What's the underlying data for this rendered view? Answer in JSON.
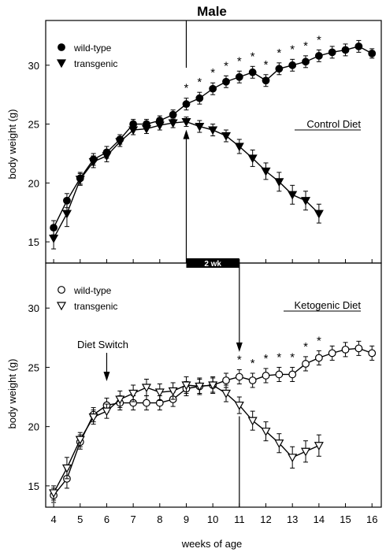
{
  "figure_title": "Male",
  "xlabel": "weeks of age",
  "ylabel": "body weight (g)",
  "x_ticks": [
    "4",
    "5",
    "6",
    "7",
    "8",
    "9",
    "10",
    "11",
    "12",
    "13",
    "14",
    "15",
    "16"
  ],
  "y_ticks": [
    "15",
    "20",
    "25",
    "30"
  ],
  "interval_label": "2 wk",
  "diet_switch_label": "Diet Switch",
  "chart_data": [
    {
      "type": "line",
      "panel": "top",
      "panel_label": "Control Diet",
      "ylabel": "body weight (g)",
      "xlabel": "",
      "xlim": [
        3.7,
        16.35
      ],
      "ylim": [
        13.2,
        33.8
      ],
      "grid": false,
      "legend_position": "top-left",
      "series": [
        {
          "name": "wild-type",
          "marker": "circle-filled",
          "x": [
            4,
            4.5,
            5,
            5.5,
            6,
            6.5,
            7,
            7.5,
            8,
            8.5,
            9,
            9.5,
            10,
            10.5,
            11,
            11.5,
            12,
            12.5,
            13,
            13.5,
            14,
            14.5,
            15,
            15.5,
            16
          ],
          "values": [
            16.2,
            18.5,
            20.4,
            22.0,
            22.6,
            23.7,
            25.0,
            25.0,
            25.3,
            25.8,
            26.7,
            27.2,
            28.0,
            28.6,
            29.0,
            29.4,
            28.7,
            29.7,
            30.0,
            30.3,
            30.8,
            31.1,
            31.3,
            31.6,
            31.0
          ],
          "error": [
            0.6,
            0.6,
            0.5,
            0.5,
            0.5,
            0.4,
            0.4,
            0.4,
            0.4,
            0.4,
            0.5,
            0.5,
            0.5,
            0.5,
            0.5,
            0.5,
            0.5,
            0.5,
            0.5,
            0.5,
            0.5,
            0.5,
            0.5,
            0.5,
            0.4
          ]
        },
        {
          "name": "transgenic",
          "marker": "triangle-down-filled",
          "x": [
            4,
            4.5,
            5,
            5.5,
            6,
            6.5,
            7,
            7.5,
            8,
            8.5,
            9,
            9.5,
            10,
            10.5,
            11,
            11.5,
            12,
            12.5,
            13,
            13.5,
            14
          ],
          "values": [
            15.3,
            17.4,
            20.3,
            21.8,
            22.3,
            23.5,
            24.5,
            24.6,
            24.9,
            25.1,
            25.2,
            24.8,
            24.5,
            24.0,
            23.1,
            22.1,
            21.0,
            20.1,
            19.0,
            18.5,
            17.4
          ],
          "error": [
            0.9,
            1.1,
            0.5,
            0.5,
            0.5,
            0.4,
            0.4,
            0.4,
            0.4,
            0.4,
            0.4,
            0.5,
            0.5,
            0.5,
            0.6,
            0.7,
            0.7,
            0.8,
            0.8,
            0.8,
            0.8
          ]
        }
      ],
      "significance_x": [
        9,
        9.5,
        10,
        10.5,
        11,
        11.5,
        12,
        12.5,
        13,
        13.5,
        14
      ],
      "significance_mark": "*"
    },
    {
      "type": "line",
      "panel": "bottom",
      "panel_label": "Ketogenic Diet",
      "ylabel": "body weight (g)",
      "xlabel": "weeks of age",
      "xlim": [
        3.7,
        16.35
      ],
      "ylim": [
        13.2,
        33.8
      ],
      "grid": false,
      "legend_position": "top-left",
      "series": [
        {
          "name": "wild-type",
          "marker": "circle-open",
          "x": [
            4,
            4.5,
            5,
            5.5,
            6,
            6.5,
            7,
            7.5,
            8,
            8.5,
            9,
            9.5,
            10,
            10.5,
            11,
            11.5,
            12,
            12.5,
            13,
            13.5,
            14,
            14.5,
            15,
            15.5,
            16
          ],
          "values": [
            14.2,
            15.6,
            18.7,
            21.0,
            21.8,
            22.0,
            22.0,
            22.0,
            22.0,
            22.3,
            23.2,
            23.4,
            23.5,
            23.9,
            24.2,
            23.9,
            24.3,
            24.4,
            24.4,
            25.3,
            25.8,
            26.2,
            26.5,
            26.6,
            26.2
          ],
          "error": [
            0.6,
            0.8,
            0.6,
            0.6,
            0.6,
            0.6,
            0.6,
            0.6,
            0.6,
            0.6,
            0.6,
            0.6,
            0.6,
            0.6,
            0.6,
            0.6,
            0.6,
            0.6,
            0.6,
            0.6,
            0.6,
            0.6,
            0.6,
            0.6,
            0.6
          ]
        },
        {
          "name": "transgenic",
          "marker": "triangle-down-open",
          "x": [
            4,
            4.5,
            5,
            5.5,
            6,
            6.5,
            7,
            7.5,
            8,
            8.5,
            9,
            9.5,
            10,
            10.5,
            11,
            11.5,
            12,
            12.5,
            13,
            13.5,
            14
          ],
          "values": [
            14.4,
            16.5,
            18.9,
            20.8,
            21.3,
            22.3,
            22.8,
            23.3,
            22.9,
            23.0,
            23.5,
            23.4,
            23.5,
            22.8,
            21.8,
            20.5,
            19.6,
            18.6,
            17.4,
            17.9,
            18.4
          ],
          "error": [
            0.6,
            0.9,
            0.6,
            0.6,
            0.6,
            0.7,
            0.7,
            0.7,
            0.7,
            0.7,
            0.7,
            0.7,
            0.7,
            0.7,
            0.7,
            0.8,
            0.8,
            0.8,
            0.9,
            0.9,
            0.9
          ]
        }
      ],
      "significance_x": [
        11,
        11.5,
        12,
        12.5,
        13,
        13.5,
        14
      ],
      "significance_mark": "*"
    }
  ]
}
